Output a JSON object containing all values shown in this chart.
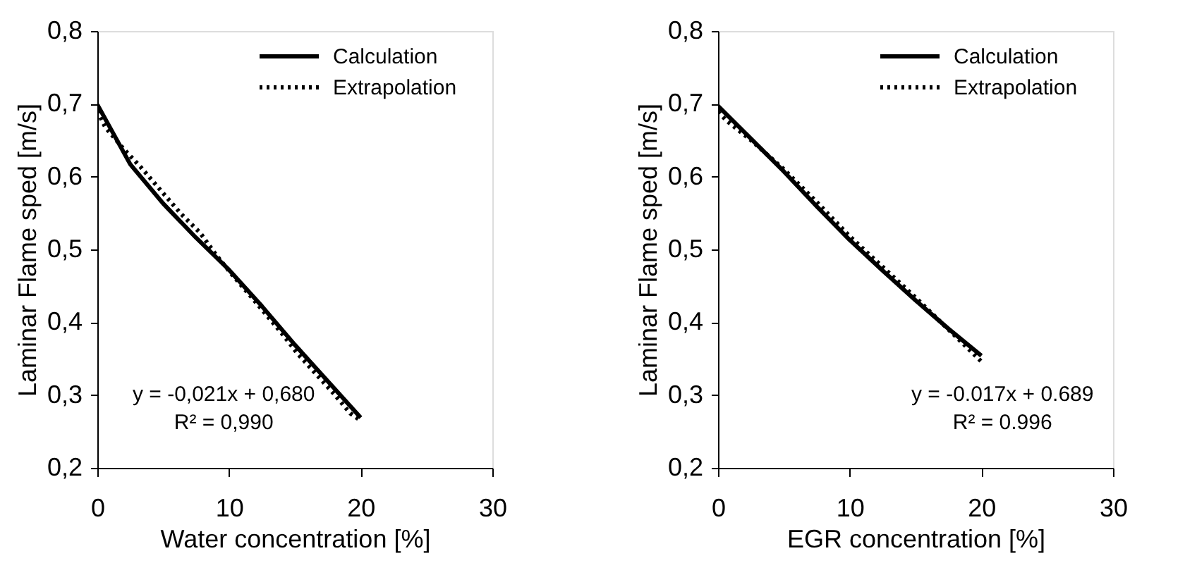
{
  "chart_data": [
    {
      "type": "line",
      "xlabel": "Water concentration [%]",
      "ylabel": "Laminar Flame sped [m/s]",
      "legend": "top right",
      "grid": false,
      "xlim": [
        0,
        30
      ],
      "xticks": [
        0,
        10,
        20,
        30
      ],
      "ylim": [
        0.2,
        0.8
      ],
      "yticks": [
        {
          "value": 0.2,
          "label": "0,2"
        },
        {
          "value": 0.3,
          "label": "0,3"
        },
        {
          "value": 0.4,
          "label": "0,4"
        },
        {
          "value": 0.5,
          "label": "0,5"
        },
        {
          "value": 0.6,
          "label": "0,6"
        },
        {
          "value": 0.7,
          "label": "0,7"
        },
        {
          "value": 0.8,
          "label": "0,8"
        }
      ],
      "annotations": [
        "y = -0,021x + 0,680",
        "R² = 0,990"
      ],
      "series": [
        {
          "name": "Calculation",
          "color": "#000000",
          "line_style": "solid",
          "x": [
            0,
            2.5,
            5,
            7.5,
            10,
            12.5,
            15,
            17.5,
            20
          ],
          "values": [
            0.699,
            0.617,
            0.563,
            0.516,
            0.472,
            0.422,
            0.369,
            0.319,
            0.269
          ]
        },
        {
          "name": "Extrapolation",
          "color": "#000000",
          "line_style": "dotted",
          "x": [
            0,
            0.6,
            2,
            3.3,
            5.2,
            6.4,
            7.8,
            9,
            10.2,
            11.4,
            12.7,
            14,
            15.2,
            16.6,
            18,
            19.2,
            20
          ],
          "values": [
            0.69,
            0.668,
            0.638,
            0.613,
            0.573,
            0.548,
            0.523,
            0.493,
            0.466,
            0.441,
            0.413,
            0.385,
            0.357,
            0.329,
            0.301,
            0.275,
            0.265
          ]
        }
      ]
    },
    {
      "type": "line",
      "xlabel": "EGR concentration [%]",
      "ylabel": "Laminar Flame sped [m/s]",
      "legend": "top right",
      "grid": false,
      "xlim": [
        0,
        30
      ],
      "xticks": [
        0,
        10,
        20,
        30
      ],
      "ylim": [
        0.2,
        0.8
      ],
      "yticks": [
        {
          "value": 0.2,
          "label": "0,2"
        },
        {
          "value": 0.3,
          "label": "0,3"
        },
        {
          "value": 0.4,
          "label": "0,4"
        },
        {
          "value": 0.5,
          "label": "0,5"
        },
        {
          "value": 0.6,
          "label": "0,6"
        },
        {
          "value": 0.7,
          "label": "0,7"
        },
        {
          "value": 0.8,
          "label": "0,8"
        }
      ],
      "annotations": [
        "y = -0.017x + 0.689",
        "R² = 0.996"
      ],
      "series": [
        {
          "name": "Calculation",
          "color": "#000000",
          "line_style": "solid",
          "x": [
            0,
            2.5,
            5,
            7.5,
            10,
            12.5,
            15,
            17.5,
            20
          ],
          "values": [
            0.697,
            0.652,
            0.607,
            0.559,
            0.513,
            0.471,
            0.43,
            0.391,
            0.354
          ]
        },
        {
          "name": "Extrapolation",
          "color": "#000000",
          "line_style": "dotted",
          "x": [
            0,
            0.7,
            2.5,
            5,
            7.5,
            10,
            12.5,
            15,
            17.5,
            20
          ],
          "values": [
            0.689,
            0.676,
            0.65,
            0.61,
            0.565,
            0.518,
            0.476,
            0.434,
            0.39,
            0.346
          ]
        }
      ]
    }
  ]
}
